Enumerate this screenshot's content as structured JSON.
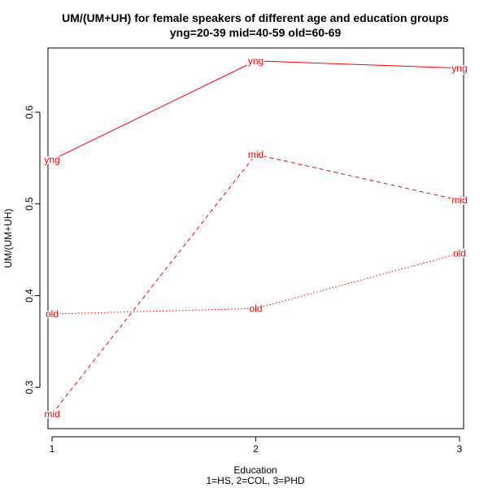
{
  "chart_data": {
    "type": "line",
    "title": "UM/(UM+UH) for female speakers of different age and education groups",
    "subtitle": "yng=20-39 mid=40-59 old=60-69",
    "xlabel": "Education",
    "xlabel_note": "1=HS, 2=COL, 3=PHD",
    "ylabel": "UM/(UM+UH)",
    "x": [
      1,
      2,
      3
    ],
    "xticks": [
      "1",
      "2",
      "3"
    ],
    "yticks": [
      "0.3",
      "0.4",
      "0.5",
      "0.6"
    ],
    "xlim": [
      0.98,
      3.02
    ],
    "ylim": [
      0.255,
      0.67
    ],
    "grid": false,
    "legend": "none",
    "color": "#ff0000",
    "series": [
      {
        "name": "yng",
        "values": [
          0.548,
          0.656,
          0.648
        ],
        "line_style": "solid",
        "point_label": "yng"
      },
      {
        "name": "mid",
        "values": [
          0.271,
          0.554,
          0.504
        ],
        "line_style": "dashed",
        "point_label": "mid"
      },
      {
        "name": "old",
        "values": [
          0.38,
          0.386,
          0.446
        ],
        "line_style": "dotted",
        "point_label": "old"
      }
    ]
  }
}
